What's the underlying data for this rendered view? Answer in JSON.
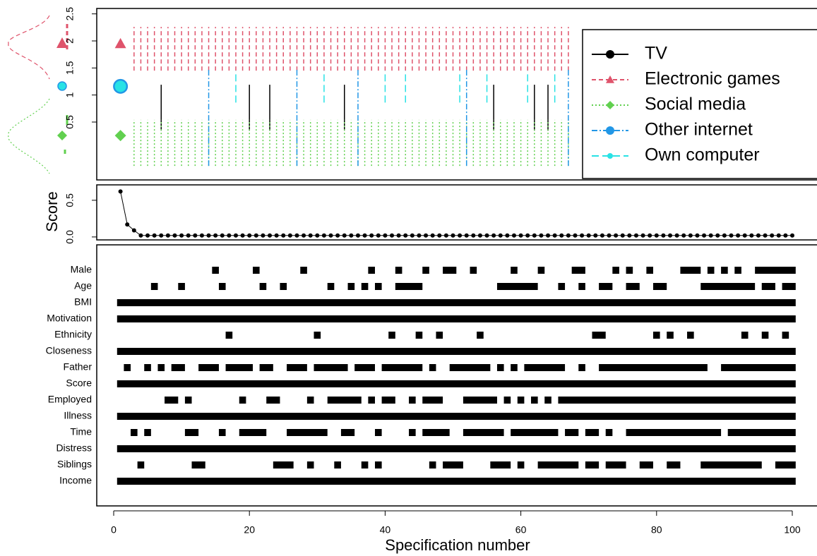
{
  "chart_data": [
    {
      "type": "interval",
      "ylim": [
        -0.57,
        2.6
      ],
      "yticks": [
        0.5,
        1,
        1.5,
        2,
        2.5
      ],
      "series": [
        {
          "name": "TV",
          "color": "#000000",
          "linestyle": "solid",
          "marker_shape": "circle",
          "x": [
            7,
            20,
            23,
            34,
            56,
            62,
            64
          ],
          "range": [
            0.34,
            1.19
          ]
        },
        {
          "name": "Electronic games",
          "color": "#df536b",
          "linestyle": "dashed",
          "marker_shape": "triangle",
          "point": [
            1,
            1.95
          ],
          "x": [
            3,
            4,
            5,
            6,
            7,
            8,
            9,
            10,
            11,
            12,
            13,
            14,
            15,
            16,
            17,
            18,
            19,
            20,
            21,
            22,
            23,
            24,
            25,
            26,
            27,
            28,
            29,
            30,
            31,
            32,
            33,
            34,
            35,
            36,
            37,
            38,
            39,
            40,
            41,
            42,
            43,
            44,
            45,
            46,
            47,
            48,
            49,
            50,
            51,
            52,
            53,
            54,
            55,
            56,
            57,
            58,
            59,
            60,
            61,
            62,
            63,
            64,
            65,
            66,
            67
          ],
          "range": [
            1.45,
            2.26
          ]
        },
        {
          "name": "Social media",
          "color": "#61d04f",
          "linestyle": "dotted",
          "marker_shape": "diamond",
          "point": [
            1,
            0.25
          ],
          "x": [
            3,
            4,
            5,
            6,
            7,
            8,
            9,
            10,
            11,
            12,
            13,
            14,
            15,
            16,
            17,
            18,
            19,
            20,
            21,
            22,
            23,
            24,
            25,
            26,
            27,
            28,
            29,
            30,
            31,
            32,
            33,
            34,
            35,
            36,
            37,
            38,
            39,
            40,
            41,
            42,
            43,
            44,
            45,
            46,
            47,
            48,
            49,
            50,
            51,
            52,
            53,
            54,
            55,
            56,
            57,
            58,
            59,
            60,
            61,
            62,
            63,
            64,
            65,
            66,
            67
          ],
          "range": [
            -0.31,
            0.54
          ]
        },
        {
          "name": "Other internet",
          "color": "#2297e6",
          "linestyle": "dashdot",
          "marker_shape": "circle",
          "point": [
            1,
            1.16
          ],
          "x": [
            14,
            27,
            36,
            52,
            67
          ],
          "range": [
            -0.31,
            1.49
          ]
        },
        {
          "name": "Own computer",
          "color": "#28e2e5",
          "linestyle": "longdash",
          "marker_shape": "circle",
          "point": [
            1,
            1.16
          ],
          "x": [
            18,
            31,
            40,
            43,
            51,
            55,
            61,
            65
          ],
          "range": [
            0.86,
            1.45
          ]
        }
      ]
    },
    {
      "type": "line",
      "ylabel": "Score",
      "color": "#000000",
      "ylim": [
        -0.04,
        0.71
      ],
      "yticks": [
        {
          "value": 0,
          "label": "0.0"
        },
        0.5
      ],
      "x": [
        1,
        2,
        3,
        4,
        5,
        6,
        7,
        8,
        9,
        10,
        11,
        12,
        13,
        14,
        15,
        16,
        17,
        18,
        19,
        20,
        21,
        22,
        23,
        24,
        25,
        26,
        27,
        28,
        29,
        30,
        31,
        32,
        33,
        34,
        35,
        36,
        37,
        38,
        39,
        40,
        41,
        42,
        43,
        44,
        45,
        46,
        47,
        48,
        49,
        50,
        51,
        52,
        53,
        54,
        55,
        56,
        57,
        58,
        59,
        60,
        61,
        62,
        63,
        64,
        65,
        66,
        67,
        68,
        69,
        70,
        71,
        72,
        73,
        74,
        75,
        76,
        77,
        78,
        79,
        80,
        81,
        82,
        83,
        84,
        85,
        86,
        87,
        88,
        89,
        90,
        91,
        92,
        93,
        94,
        95,
        96,
        97,
        98,
        99,
        100
      ],
      "values": [
        0.62,
        0.17,
        0.09,
        0.02,
        0.02,
        0.02,
        0.02,
        0.02,
        0.02,
        0.02,
        0.02,
        0.02,
        0.02,
        0.02,
        0.02,
        0.02,
        0.02,
        0.02,
        0.02,
        0.02,
        0.02,
        0.02,
        0.02,
        0.02,
        0.02,
        0.02,
        0.02,
        0.02,
        0.02,
        0.02,
        0.02,
        0.02,
        0.02,
        0.02,
        0.02,
        0.02,
        0.02,
        0.02,
        0.02,
        0.02,
        0.02,
        0.02,
        0.02,
        0.02,
        0.02,
        0.02,
        0.02,
        0.02,
        0.02,
        0.02,
        0.02,
        0.02,
        0.02,
        0.02,
        0.02,
        0.02,
        0.02,
        0.02,
        0.02,
        0.02,
        0.02,
        0.02,
        0.02,
        0.02,
        0.02,
        0.02,
        0.02,
        0.02,
        0.02,
        0.02,
        0.02,
        0.02,
        0.02,
        0.02,
        0.02,
        0.02,
        0.02,
        0.02,
        0.02,
        0.02,
        0.02,
        0.02,
        0.02,
        0.02,
        0.02,
        0.02,
        0.02,
        0.02,
        0.02,
        0.02,
        0.02,
        0.02,
        0.02,
        0.02,
        0.02,
        0.02,
        0.02,
        0.02,
        0.02,
        0.02
      ]
    },
    {
      "type": "specification",
      "xlabel": "Specification number",
      "color": "#000000",
      "xlim": [
        0,
        100
      ],
      "xticks": [
        0,
        20,
        40,
        60,
        80,
        100
      ],
      "rows": [
        {
          "name": "Male",
          "segments": [
            [
              15,
              15
            ],
            [
              21,
              21
            ],
            [
              28,
              28
            ],
            [
              38,
              38
            ],
            [
              42,
              42
            ],
            [
              46,
              46
            ],
            [
              49,
              50
            ],
            [
              53,
              53
            ],
            [
              59,
              59
            ],
            [
              63,
              63
            ],
            [
              68,
              69
            ],
            [
              74,
              74
            ],
            [
              76,
              76
            ],
            [
              79,
              79
            ],
            [
              84,
              86
            ],
            [
              88,
              88
            ],
            [
              90,
              90
            ],
            [
              92,
              92
            ],
            [
              95,
              100
            ]
          ]
        },
        {
          "name": "Age",
          "segments": [
            [
              6,
              6
            ],
            [
              10,
              10
            ],
            [
              16,
              16
            ],
            [
              22,
              22
            ],
            [
              25,
              25
            ],
            [
              32,
              32
            ],
            [
              35,
              35
            ],
            [
              37,
              37
            ],
            [
              39,
              39
            ],
            [
              42,
              45
            ],
            [
              57,
              62
            ],
            [
              66,
              66
            ],
            [
              69,
              69
            ],
            [
              72,
              73
            ],
            [
              76,
              77
            ],
            [
              80,
              81
            ],
            [
              87,
              94
            ],
            [
              96,
              97
            ],
            [
              99,
              100
            ]
          ]
        },
        {
          "name": "BMI",
          "segments": [
            [
              1,
              100
            ]
          ]
        },
        {
          "name": "Motivation",
          "segments": [
            [
              1,
              100
            ]
          ]
        },
        {
          "name": "Ethnicity",
          "segments": [
            [
              17,
              17
            ],
            [
              30,
              30
            ],
            [
              41,
              41
            ],
            [
              45,
              45
            ],
            [
              48,
              48
            ],
            [
              54,
              54
            ],
            [
              71,
              72
            ],
            [
              80,
              80
            ],
            [
              82,
              82
            ],
            [
              85,
              85
            ],
            [
              93,
              93
            ],
            [
              96,
              96
            ],
            [
              99,
              99
            ]
          ]
        },
        {
          "name": "Closeness",
          "segments": [
            [
              1,
              100
            ]
          ]
        },
        {
          "name": "Father",
          "segments": [
            [
              2,
              2
            ],
            [
              5,
              5
            ],
            [
              7,
              7
            ],
            [
              9,
              10
            ],
            [
              13,
              15
            ],
            [
              17,
              20
            ],
            [
              22,
              23
            ],
            [
              26,
              28
            ],
            [
              30,
              34
            ],
            [
              36,
              38
            ],
            [
              40,
              45
            ],
            [
              47,
              47
            ],
            [
              50,
              55
            ],
            [
              57,
              57
            ],
            [
              59,
              59
            ],
            [
              61,
              66
            ],
            [
              69,
              69
            ],
            [
              72,
              87
            ],
            [
              90,
              100
            ]
          ]
        },
        {
          "name": "Score",
          "segments": [
            [
              1,
              100
            ]
          ]
        },
        {
          "name": "Employed",
          "segments": [
            [
              8,
              9
            ],
            [
              11,
              11
            ],
            [
              19,
              19
            ],
            [
              23,
              24
            ],
            [
              29,
              29
            ],
            [
              32,
              36
            ],
            [
              38,
              38
            ],
            [
              40,
              41
            ],
            [
              44,
              44
            ],
            [
              46,
              48
            ],
            [
              52,
              56
            ],
            [
              58,
              58
            ],
            [
              60,
              60
            ],
            [
              62,
              62
            ],
            [
              64,
              64
            ],
            [
              66,
              100
            ]
          ]
        },
        {
          "name": "Illness",
          "segments": [
            [
              1,
              100
            ]
          ]
        },
        {
          "name": "Time",
          "segments": [
            [
              3,
              3
            ],
            [
              5,
              5
            ],
            [
              11,
              12
            ],
            [
              16,
              16
            ],
            [
              19,
              22
            ],
            [
              26,
              31
            ],
            [
              34,
              35
            ],
            [
              39,
              39
            ],
            [
              44,
              44
            ],
            [
              46,
              49
            ],
            [
              52,
              57
            ],
            [
              59,
              65
            ],
            [
              67,
              68
            ],
            [
              70,
              71
            ],
            [
              73,
              73
            ],
            [
              76,
              89
            ],
            [
              91,
              100
            ]
          ]
        },
        {
          "name": "Distress",
          "segments": [
            [
              1,
              100
            ]
          ]
        },
        {
          "name": "Siblings",
          "segments": [
            [
              4,
              4
            ],
            [
              12,
              13
            ],
            [
              24,
              26
            ],
            [
              29,
              29
            ],
            [
              33,
              33
            ],
            [
              37,
              37
            ],
            [
              39,
              39
            ],
            [
              47,
              47
            ],
            [
              49,
              51
            ],
            [
              56,
              58
            ],
            [
              60,
              60
            ],
            [
              63,
              68
            ],
            [
              70,
              71
            ],
            [
              73,
              75
            ],
            [
              78,
              79
            ],
            [
              82,
              83
            ],
            [
              87,
              95
            ],
            [
              98,
              100
            ]
          ]
        },
        {
          "name": "Income",
          "segments": [
            [
              1,
              100
            ]
          ]
        }
      ]
    }
  ]
}
